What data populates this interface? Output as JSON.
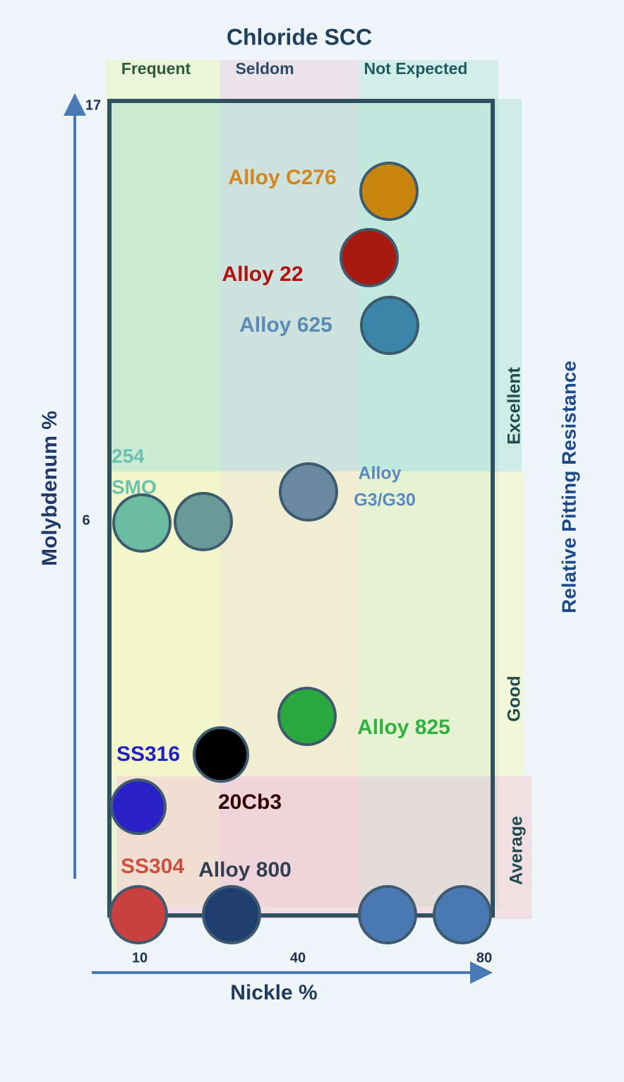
{
  "title": "Chloride SCC",
  "columns": [
    {
      "label": "Frequent"
    },
    {
      "label": "Seldom"
    },
    {
      "label": "Not Expected"
    }
  ],
  "rows": [
    {
      "label": "Excellent"
    },
    {
      "label": "Good"
    },
    {
      "label": "Average"
    }
  ],
  "right_label": "Relative Pitting Resistance",
  "x_axis": {
    "label": "Nickle %",
    "ticks": [
      "10",
      "40",
      "80"
    ]
  },
  "y_axis": {
    "label": "Molybdenum %",
    "ticks": [
      "6",
      "17"
    ]
  },
  "alloys": [
    {
      "lines": [
        "Alloy C276"
      ]
    },
    {
      "lines": [
        "Alloy 22"
      ]
    },
    {
      "lines": [
        "Alloy 625"
      ]
    },
    {
      "lines": [
        "254",
        "SMO"
      ]
    },
    {
      "lines": [
        "Alloy",
        "G3/G30"
      ]
    },
    {
      "lines": [
        "Alloy 825"
      ]
    },
    {
      "lines": [
        "SS316"
      ]
    },
    {
      "lines": [
        "20Cb3"
      ]
    },
    {
      "lines": [
        "SS304"
      ]
    },
    {
      "lines": [
        "Alloy 800"
      ]
    }
  ]
}
